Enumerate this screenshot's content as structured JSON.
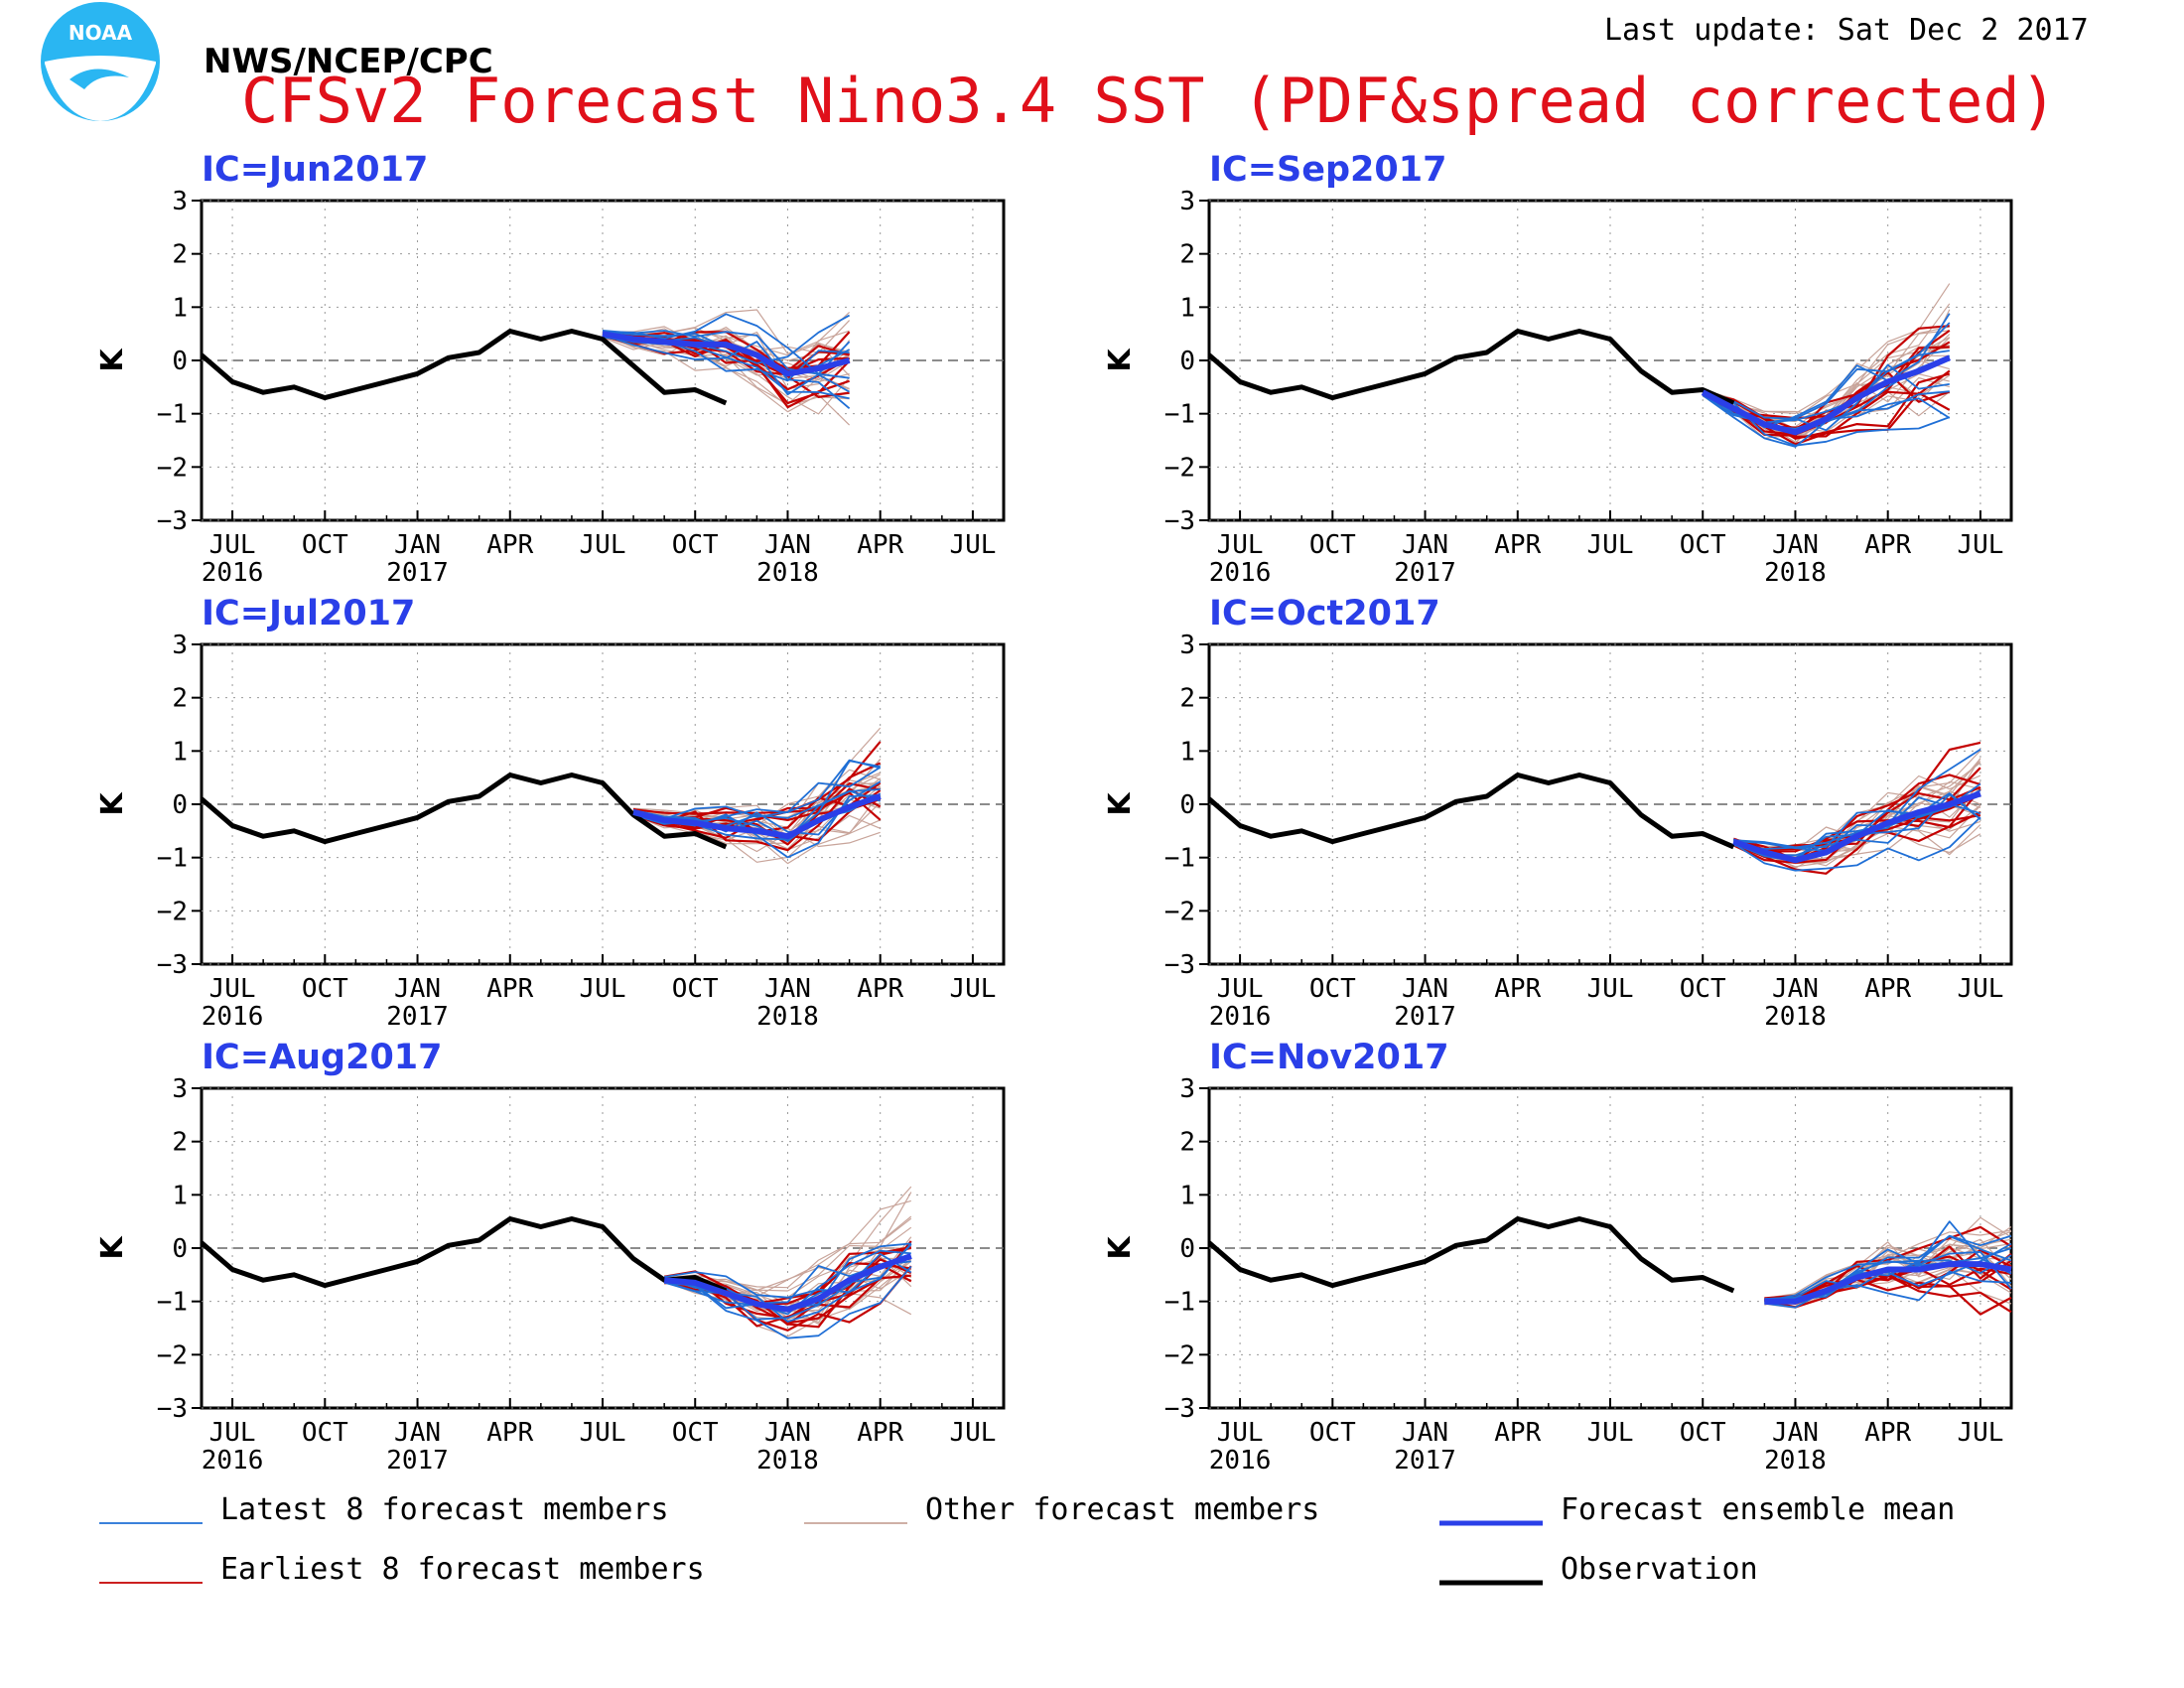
{
  "header": {
    "org": "NWS/NCEP/CPC",
    "title": "CFSv2 Forecast Nino3.4 SST (PDF&spread corrected)",
    "last_update": "Last update: Sat Dec 2 2017",
    "logo_text": "NOAA"
  },
  "colors": {
    "title": "#e0101a",
    "ic_label": "#2a3fe8",
    "latest": "#1f6fd6",
    "earliest": "#c40000",
    "other": "#c8a49a",
    "mean": "#2a3fe8",
    "observation": "#000000"
  },
  "legend": [
    {
      "key": "latest",
      "label": "Latest 8 forecast members"
    },
    {
      "key": "other",
      "label": "Other forecast members"
    },
    {
      "key": "mean",
      "label": "Forecast ensemble mean"
    },
    {
      "key": "earliest",
      "label": "Earliest 8 forecast members"
    },
    {
      "key": "observation",
      "label": "Observation"
    }
  ],
  "chart_data": [
    {
      "type": "line",
      "title": "IC=Jun2017",
      "ylabel": "K",
      "ylim": [
        -3,
        3
      ],
      "yticks": [
        -3,
        -2,
        -1,
        0,
        1,
        2,
        3
      ],
      "xlim": [
        "2016-06",
        "2018-08"
      ],
      "xticks": [
        "JUL",
        "OCT",
        "JAN",
        "APR",
        "JUL",
        "OCT",
        "JAN",
        "APR",
        "JUL"
      ],
      "year_labels": [
        "2016",
        "2017",
        "2018"
      ],
      "observation": {
        "x": [
          "2016-06",
          "2016-07",
          "2016-08",
          "2016-09",
          "2016-10",
          "2016-11",
          "2016-12",
          "2017-01",
          "2017-02",
          "2017-03",
          "2017-04",
          "2017-05",
          "2017-06",
          "2017-07",
          "2017-08",
          "2017-09",
          "2017-10",
          "2017-11"
        ],
        "y": [
          0.1,
          -0.4,
          -0.6,
          -0.5,
          -0.7,
          -0.55,
          -0.4,
          -0.25,
          0.05,
          0.15,
          0.55,
          0.4,
          0.55,
          0.4,
          -0.1,
          -0.6,
          -0.55,
          -0.8
        ]
      },
      "ensemble_mean": {
        "x": [
          "2017-07",
          "2017-08",
          "2017-09",
          "2017-10",
          "2017-11",
          "2017-12",
          "2018-01",
          "2018-02",
          "2018-03"
        ],
        "y": [
          0.5,
          0.4,
          0.35,
          0.3,
          0.3,
          0.1,
          -0.25,
          -0.15,
          0.0
        ]
      }
    },
    {
      "type": "line",
      "title": "IC=Sep2017",
      "ylabel": "K",
      "ylim": [
        -3,
        3
      ],
      "yticks": [
        -3,
        -2,
        -1,
        0,
        1,
        2,
        3
      ],
      "xlim": [
        "2016-06",
        "2018-08"
      ],
      "xticks": [
        "JUL",
        "OCT",
        "JAN",
        "APR",
        "JUL",
        "OCT",
        "JAN",
        "APR",
        "JUL"
      ],
      "year_labels": [
        "2016",
        "2017",
        "2018"
      ],
      "observation": {
        "x": [
          "2016-06",
          "2016-07",
          "2016-08",
          "2016-09",
          "2016-10",
          "2016-11",
          "2016-12",
          "2017-01",
          "2017-02",
          "2017-03",
          "2017-04",
          "2017-05",
          "2017-06",
          "2017-07",
          "2017-08",
          "2017-09",
          "2017-10",
          "2017-11"
        ],
        "y": [
          0.1,
          -0.4,
          -0.6,
          -0.5,
          -0.7,
          -0.55,
          -0.4,
          -0.25,
          0.05,
          0.15,
          0.55,
          0.4,
          0.55,
          0.4,
          -0.2,
          -0.6,
          -0.55,
          -0.8
        ]
      },
      "ensemble_mean": {
        "x": [
          "2017-10",
          "2017-11",
          "2017-12",
          "2018-01",
          "2018-02",
          "2018-03",
          "2018-04",
          "2018-05",
          "2018-06"
        ],
        "y": [
          -0.6,
          -0.9,
          -1.2,
          -1.35,
          -1.1,
          -0.7,
          -0.4,
          -0.2,
          0.05
        ]
      }
    },
    {
      "type": "line",
      "title": "IC=Jul2017",
      "ylabel": "K",
      "ylim": [
        -3,
        3
      ],
      "yticks": [
        -3,
        -2,
        -1,
        0,
        1,
        2,
        3
      ],
      "xlim": [
        "2016-06",
        "2018-08"
      ],
      "xticks": [
        "JUL",
        "OCT",
        "JAN",
        "APR",
        "JUL",
        "OCT",
        "JAN",
        "APR",
        "JUL"
      ],
      "year_labels": [
        "2016",
        "2017",
        "2018"
      ],
      "observation": {
        "x": [
          "2016-06",
          "2016-07",
          "2016-08",
          "2016-09",
          "2016-10",
          "2016-11",
          "2016-12",
          "2017-01",
          "2017-02",
          "2017-03",
          "2017-04",
          "2017-05",
          "2017-06",
          "2017-07",
          "2017-08",
          "2017-09",
          "2017-10",
          "2017-11"
        ],
        "y": [
          0.1,
          -0.4,
          -0.6,
          -0.5,
          -0.7,
          -0.55,
          -0.4,
          -0.25,
          0.05,
          0.15,
          0.55,
          0.4,
          0.55,
          0.4,
          -0.2,
          -0.6,
          -0.55,
          -0.8
        ]
      },
      "ensemble_mean": {
        "x": [
          "2017-08",
          "2017-09",
          "2017-10",
          "2017-11",
          "2017-12",
          "2018-01",
          "2018-02",
          "2018-03",
          "2018-04"
        ],
        "y": [
          -0.15,
          -0.3,
          -0.35,
          -0.45,
          -0.5,
          -0.6,
          -0.3,
          -0.05,
          0.15
        ]
      }
    },
    {
      "type": "line",
      "title": "IC=Oct2017",
      "ylabel": "K",
      "ylim": [
        -3,
        3
      ],
      "yticks": [
        -3,
        -2,
        -1,
        0,
        1,
        2,
        3
      ],
      "xlim": [
        "2016-06",
        "2018-08"
      ],
      "xticks": [
        "JUL",
        "OCT",
        "JAN",
        "APR",
        "JUL",
        "OCT",
        "JAN",
        "APR",
        "JUL"
      ],
      "year_labels": [
        "2016",
        "2017",
        "2018"
      ],
      "observation": {
        "x": [
          "2016-06",
          "2016-07",
          "2016-08",
          "2016-09",
          "2016-10",
          "2016-11",
          "2016-12",
          "2017-01",
          "2017-02",
          "2017-03",
          "2017-04",
          "2017-05",
          "2017-06",
          "2017-07",
          "2017-08",
          "2017-09",
          "2017-10",
          "2017-11"
        ],
        "y": [
          0.1,
          -0.4,
          -0.6,
          -0.5,
          -0.7,
          -0.55,
          -0.4,
          -0.25,
          0.05,
          0.15,
          0.55,
          0.4,
          0.55,
          0.4,
          -0.2,
          -0.6,
          -0.55,
          -0.8
        ]
      },
      "ensemble_mean": {
        "x": [
          "2017-11",
          "2017-12",
          "2018-01",
          "2018-02",
          "2018-03",
          "2018-04",
          "2018-05",
          "2018-06",
          "2018-07"
        ],
        "y": [
          -0.7,
          -0.9,
          -1.05,
          -0.9,
          -0.6,
          -0.35,
          -0.15,
          0.0,
          0.2
        ]
      }
    },
    {
      "type": "line",
      "title": "IC=Aug2017",
      "ylabel": "K",
      "ylim": [
        -3,
        3
      ],
      "yticks": [
        -3,
        -2,
        -1,
        0,
        1,
        2,
        3
      ],
      "xlim": [
        "2016-06",
        "2018-08"
      ],
      "xticks": [
        "JUL",
        "OCT",
        "JAN",
        "APR",
        "JUL",
        "OCT",
        "JAN",
        "APR",
        "JUL"
      ],
      "year_labels": [
        "2016",
        "2017",
        "2018"
      ],
      "observation": {
        "x": [
          "2016-06",
          "2016-07",
          "2016-08",
          "2016-09",
          "2016-10",
          "2016-11",
          "2016-12",
          "2017-01",
          "2017-02",
          "2017-03",
          "2017-04",
          "2017-05",
          "2017-06",
          "2017-07",
          "2017-08",
          "2017-09",
          "2017-10",
          "2017-11"
        ],
        "y": [
          0.1,
          -0.4,
          -0.6,
          -0.5,
          -0.7,
          -0.55,
          -0.4,
          -0.25,
          0.05,
          0.15,
          0.55,
          0.4,
          0.55,
          0.4,
          -0.2,
          -0.6,
          -0.55,
          -0.8
        ]
      },
      "ensemble_mean": {
        "x": [
          "2017-09",
          "2017-10",
          "2017-11",
          "2017-12",
          "2018-01",
          "2018-02",
          "2018-03",
          "2018-04",
          "2018-05"
        ],
        "y": [
          -0.6,
          -0.65,
          -0.85,
          -1.05,
          -1.15,
          -0.95,
          -0.6,
          -0.35,
          -0.15
        ]
      }
    },
    {
      "type": "line",
      "title": "IC=Nov2017",
      "ylabel": "K",
      "ylim": [
        -3,
        3
      ],
      "yticks": [
        -3,
        -2,
        -1,
        0,
        1,
        2,
        3
      ],
      "xlim": [
        "2016-06",
        "2018-08"
      ],
      "xticks": [
        "JUL",
        "OCT",
        "JAN",
        "APR",
        "JUL",
        "OCT",
        "JAN",
        "APR",
        "JUL"
      ],
      "year_labels": [
        "2016",
        "2017",
        "2018"
      ],
      "observation": {
        "x": [
          "2016-06",
          "2016-07",
          "2016-08",
          "2016-09",
          "2016-10",
          "2016-11",
          "2016-12",
          "2017-01",
          "2017-02",
          "2017-03",
          "2017-04",
          "2017-05",
          "2017-06",
          "2017-07",
          "2017-08",
          "2017-09",
          "2017-10",
          "2017-11"
        ],
        "y": [
          0.1,
          -0.4,
          -0.6,
          -0.5,
          -0.7,
          -0.55,
          -0.4,
          -0.25,
          0.05,
          0.15,
          0.55,
          0.4,
          0.55,
          0.4,
          -0.2,
          -0.6,
          -0.55,
          -0.8
        ]
      },
      "ensemble_mean": {
        "x": [
          "2017-12",
          "2018-01",
          "2018-02",
          "2018-03",
          "2018-04",
          "2018-05",
          "2018-06",
          "2018-07",
          "2018-08"
        ],
        "y": [
          -1.0,
          -1.0,
          -0.8,
          -0.55,
          -0.4,
          -0.4,
          -0.3,
          -0.3,
          -0.4
        ]
      }
    }
  ]
}
